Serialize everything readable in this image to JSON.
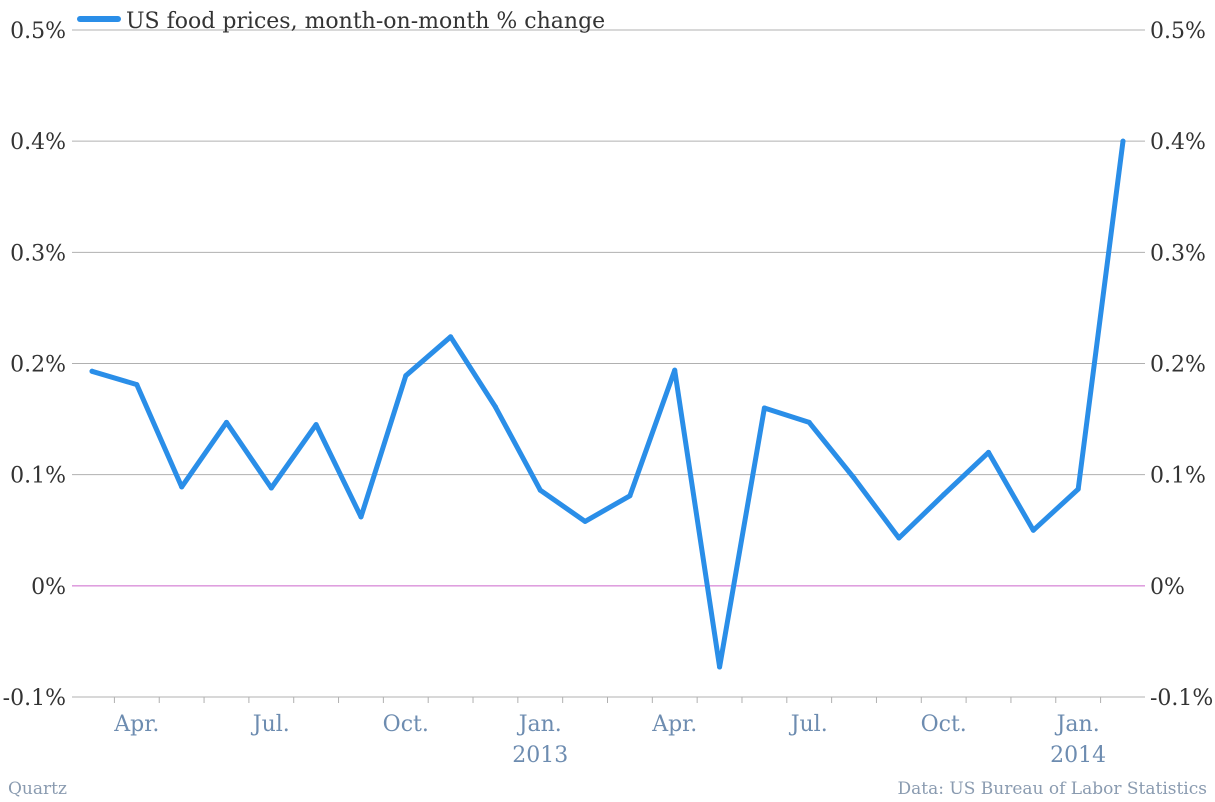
{
  "chart_data": {
    "type": "line",
    "legend": {
      "label": "US food prices, month-on-month % change",
      "placement": "top-left"
    },
    "colors": {
      "series": "#2a8ee8",
      "zero_line": "#cc66cc",
      "grid": "#b0b0b0",
      "axis_label": "#6d8cb0",
      "tick_label": "#333333",
      "footer": "#8a9bb0"
    },
    "y_axis": {
      "min": -0.1,
      "max": 0.5,
      "ticks": [
        {
          "value": 0.5,
          "label": "0.5%"
        },
        {
          "value": 0.4,
          "label": "0.4%"
        },
        {
          "value": 0.3,
          "label": "0.3%"
        },
        {
          "value": 0.2,
          "label": "0.2%"
        },
        {
          "value": 0.1,
          "label": "0.1%"
        },
        {
          "value": 0.0,
          "label": "0%"
        },
        {
          "value": -0.1,
          "label": "-0.1%"
        }
      ],
      "grid": true,
      "both_sides": true
    },
    "x_axis": {
      "start": "2012-03",
      "end": "2014-02",
      "ticks": [
        {
          "month": "2012-04",
          "label": "Apr."
        },
        {
          "month": "2012-07",
          "label": "Jul."
        },
        {
          "month": "2012-10",
          "label": "Oct."
        },
        {
          "month": "2013-01",
          "label": "Jan."
        },
        {
          "month": "2013-04",
          "label": "Apr."
        },
        {
          "month": "2013-07",
          "label": "Jul."
        },
        {
          "month": "2013-10",
          "label": "Oct."
        },
        {
          "month": "2014-01",
          "label": "Jan."
        }
      ],
      "year_labels": [
        {
          "month": "2013-01",
          "label": "2013"
        },
        {
          "month": "2014-01",
          "label": "2014"
        }
      ]
    },
    "series": [
      {
        "name": "US food prices, month-on-month % change",
        "points": [
          {
            "x": "2012-03",
            "y": 0.193
          },
          {
            "x": "2012-04",
            "y": 0.181
          },
          {
            "x": "2012-05",
            "y": 0.089
          },
          {
            "x": "2012-06",
            "y": 0.147
          },
          {
            "x": "2012-07",
            "y": 0.088
          },
          {
            "x": "2012-08",
            "y": 0.145
          },
          {
            "x": "2012-09",
            "y": 0.062
          },
          {
            "x": "2012-10",
            "y": 0.189
          },
          {
            "x": "2012-11",
            "y": 0.224
          },
          {
            "x": "2012-12",
            "y": 0.161
          },
          {
            "x": "2013-01",
            "y": 0.086
          },
          {
            "x": "2013-02",
            "y": 0.058
          },
          {
            "x": "2013-03",
            "y": 0.081
          },
          {
            "x": "2013-04",
            "y": 0.194
          },
          {
            "x": "2013-05",
            "y": -0.073
          },
          {
            "x": "2013-06",
            "y": 0.16
          },
          {
            "x": "2013-07",
            "y": 0.147
          },
          {
            "x": "2013-08",
            "y": 0.097
          },
          {
            "x": "2013-09",
            "y": 0.043
          },
          {
            "x": "2013-10",
            "y": 0.082
          },
          {
            "x": "2013-11",
            "y": 0.12
          },
          {
            "x": "2013-12",
            "y": 0.05
          },
          {
            "x": "2014-01",
            "y": 0.087
          },
          {
            "x": "2014-02",
            "y": 0.4
          }
        ]
      }
    ],
    "source": "Data: US Bureau of Labor Statistics",
    "credit": "Quartz"
  }
}
